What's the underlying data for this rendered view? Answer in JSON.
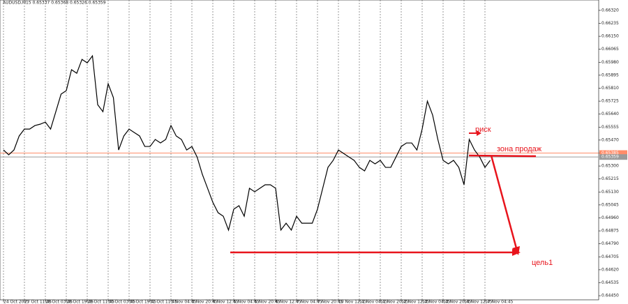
{
  "chart_data": {
    "type": "line",
    "title": "AUDUSD,M15  0.65337 0.65368 0.65326 0.65359",
    "color": "#000000",
    "categories": [
      "24 Oct 2025",
      null,
      null,
      null,
      "27 Oct 11:45",
      null,
      null,
      null,
      "28 Oct 03:45",
      null,
      null,
      null,
      "28 Oct 19:45",
      null,
      null,
      null,
      "29 Oct 11:45",
      null,
      null,
      null,
      "30 Oct 03:45",
      null,
      null,
      null,
      "30 Oct 19:45",
      null,
      null,
      null,
      "31 Oct 11:45",
      null,
      null,
      null,
      "3 Nov 04:45",
      null,
      null,
      null,
      "3 Nov 20:45",
      null,
      null,
      null,
      "4 Nov 12:45",
      null,
      null,
      null,
      "5 Nov 04:45",
      null,
      null,
      null,
      "5 Nov 20:45",
      null,
      null,
      null,
      "6 Nov 12:45",
      null,
      null,
      null,
      "7 Nov 04:45",
      null,
      null,
      null,
      "7 Nov 20:45",
      null,
      null,
      null,
      "10 Nov 12:45",
      null,
      null,
      null,
      "11 Nov 04:45",
      null,
      null,
      null,
      "11 Nov 20:45",
      null,
      null,
      null,
      "12 Nov 12:45",
      null,
      null,
      null,
      "13 Nov 04:45",
      null,
      null,
      null,
      "13 Nov 20:45",
      null,
      null,
      null,
      "14 Nov 12:45",
      null,
      null,
      null,
      "17 Nov 04:45",
      null
    ],
    "values": [
      0.65405,
      0.65373,
      0.65405,
      0.65497,
      0.65542,
      0.65542,
      0.65565,
      0.65574,
      0.65588,
      0.65542,
      0.65656,
      0.65771,
      0.65794,
      0.65931,
      0.65908,
      0.65999,
      0.65976,
      0.66022,
      0.65702,
      0.65656,
      0.65839,
      0.65748,
      0.65405,
      0.65497,
      0.65542,
      0.65519,
      0.65497,
      0.65428,
      0.65428,
      0.65474,
      0.65451,
      0.65474,
      0.65565,
      0.65497,
      0.65474,
      0.65405,
      0.65428,
      0.65359,
      0.65245,
      0.65154,
      0.65062,
      0.64994,
      0.64971,
      0.6488,
      0.65017,
      0.6504,
      0.64971,
      0.65154,
      0.65131,
      0.65154,
      0.65177,
      0.65177,
      0.65154,
      0.6488,
      0.64925,
      0.6488,
      0.64971,
      0.64925,
      0.64925,
      0.64925,
      0.65017,
      0.65154,
      0.65291,
      0.65337,
      0.65405,
      0.65382,
      0.65359,
      0.65337,
      0.65291,
      0.65268,
      0.65337,
      0.65314,
      0.65337,
      0.65291,
      0.65291,
      0.65359,
      0.65428,
      0.65451,
      0.65451,
      0.65405,
      0.65542,
      0.65725,
      0.65634,
      0.65474,
      0.65337,
      0.65314,
      0.65337,
      0.65291,
      0.65177,
      0.65474,
      0.65405,
      0.65359,
      0.65291,
      0.65337
    ],
    "ylim": [
      0.64423,
      0.66388
    ],
    "yticks": [
      {
        "value": 0.6445,
        "label": "0.64450"
      },
      0.64535,
      {
        "value": 0.6462,
        "label": "0.64620"
      },
      0.64705,
      {
        "value": 0.6479,
        "label": "0.64790"
      },
      0.64875,
      {
        "value": 0.6496,
        "label": "0.64960"
      },
      0.65045,
      {
        "value": 0.6513,
        "label": "0.65130"
      },
      0.65215,
      {
        "value": 0.653,
        "label": "0.65300"
      },
      0.65385,
      {
        "value": 0.6547,
        "label": "0.65470"
      },
      0.65555,
      {
        "value": 0.6564,
        "label": "0.65640"
      },
      0.65725,
      {
        "value": 0.6581,
        "label": "0.65810"
      },
      0.65895,
      {
        "value": 0.6598,
        "label": "0.65980"
      },
      0.66065,
      {
        "value": 0.6615,
        "label": "0.66150"
      },
      0.66235,
      {
        "value": 0.6632,
        "label": "0.66320"
      }
    ],
    "grid": true,
    "levels": [
      {
        "value": 0.65385,
        "color": "#ff8c69"
      },
      {
        "value": 0.65359,
        "color": "#9a9a9a"
      }
    ],
    "annotations": [
      "риск",
      "зона продаж",
      "цель1"
    ]
  }
}
